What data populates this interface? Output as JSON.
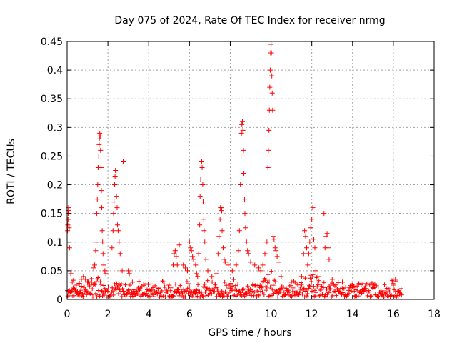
{
  "chart_data": {
    "type": "scatter",
    "title": "Day 075 of 2024, Rate Of TEC Index for receiver nrmg",
    "xlabel": "GPS time / hours",
    "ylabel": "ROTI / TECUs",
    "xlim": [
      0,
      18
    ],
    "ylim": [
      0,
      0.45
    ],
    "xticks": [
      0,
      2,
      4,
      6,
      8,
      10,
      12,
      14,
      16,
      18
    ],
    "xtick_labels": [
      "0",
      "2",
      "4",
      "6",
      "8",
      "10",
      "12",
      "14",
      "16",
      "18"
    ],
    "yticks": [
      0,
      0.05,
      0.1,
      0.15,
      0.2,
      0.25,
      0.3,
      0.35,
      0.4,
      0.45
    ],
    "ytick_labels": [
      "0",
      "0.05",
      "0.1",
      "0.15",
      "0.2",
      "0.25",
      "0.3",
      "0.35",
      "0.4",
      "0.45"
    ],
    "grid": true,
    "marker": "+",
    "color": "#ff0000",
    "series": [
      {
        "name": "ROTI",
        "points": [
          [
            0.02,
            0.12
          ],
          [
            0.03,
            0.13
          ],
          [
            0.04,
            0.14
          ],
          [
            0.05,
            0.15
          ],
          [
            0.06,
            0.155
          ],
          [
            0.07,
            0.16
          ],
          [
            0.08,
            0.14
          ],
          [
            0.1,
            0.125
          ],
          [
            0.12,
            0.09
          ],
          [
            0.18,
            0.045
          ],
          [
            0.2,
            0.048
          ],
          [
            0.25,
            0.03
          ],
          [
            0.3,
            0.02
          ],
          [
            0.45,
            0.025
          ],
          [
            0.6,
            0.028
          ],
          [
            0.7,
            0.035
          ],
          [
            0.8,
            0.04
          ],
          [
            0.9,
            0.035
          ],
          [
            1.0,
            0.03
          ],
          [
            1.1,
            0.025
          ],
          [
            1.2,
            0.03
          ],
          [
            1.3,
            0.055
          ],
          [
            1.35,
            0.06
          ],
          [
            1.4,
            0.085
          ],
          [
            1.42,
            0.1
          ],
          [
            1.45,
            0.15
          ],
          [
            1.48,
            0.175
          ],
          [
            1.5,
            0.2
          ],
          [
            1.52,
            0.23
          ],
          [
            1.55,
            0.25
          ],
          [
            1.57,
            0.27
          ],
          [
            1.58,
            0.28
          ],
          [
            1.6,
            0.29
          ],
          [
            1.62,
            0.285
          ],
          [
            1.64,
            0.26
          ],
          [
            1.66,
            0.23
          ],
          [
            1.68,
            0.19
          ],
          [
            1.7,
            0.16
          ],
          [
            1.72,
            0.12
          ],
          [
            1.74,
            0.1
          ],
          [
            1.76,
            0.08
          ],
          [
            1.8,
            0.06
          ],
          [
            1.85,
            0.05
          ],
          [
            1.9,
            0.045
          ],
          [
            2.2,
            0.09
          ],
          [
            2.25,
            0.12
          ],
          [
            2.28,
            0.15
          ],
          [
            2.3,
            0.17
          ],
          [
            2.33,
            0.2
          ],
          [
            2.35,
            0.215
          ],
          [
            2.37,
            0.225
          ],
          [
            2.4,
            0.21
          ],
          [
            2.42,
            0.18
          ],
          [
            2.45,
            0.16
          ],
          [
            2.47,
            0.13
          ],
          [
            2.5,
            0.12
          ],
          [
            2.55,
            0.1
          ],
          [
            2.6,
            0.08
          ],
          [
            2.7,
            0.05
          ],
          [
            2.75,
            0.24
          ],
          [
            3.0,
            0.05
          ],
          [
            3.05,
            0.045
          ],
          [
            3.2,
            0.03
          ],
          [
            3.5,
            0.02
          ],
          [
            4.0,
            0.015
          ],
          [
            4.5,
            0.02
          ],
          [
            5.0,
            0.025
          ],
          [
            5.2,
            0.06
          ],
          [
            5.25,
            0.08
          ],
          [
            5.3,
            0.085
          ],
          [
            5.35,
            0.075
          ],
          [
            5.4,
            0.06
          ],
          [
            5.5,
            0.095
          ],
          [
            5.7,
            0.06
          ],
          [
            5.8,
            0.055
          ],
          [
            5.9,
            0.05
          ],
          [
            6.0,
            0.1
          ],
          [
            6.05,
            0.09
          ],
          [
            6.1,
            0.085
          ],
          [
            6.15,
            0.075
          ],
          [
            6.2,
            0.07
          ],
          [
            6.3,
            0.06
          ],
          [
            6.35,
            0.045
          ],
          [
            6.4,
            0.04
          ],
          [
            6.45,
            0.08
          ],
          [
            6.5,
            0.13
          ],
          [
            6.52,
            0.18
          ],
          [
            6.55,
            0.21
          ],
          [
            6.57,
            0.24
          ],
          [
            6.6,
            0.24
          ],
          [
            6.62,
            0.23
          ],
          [
            6.65,
            0.2
          ],
          [
            6.67,
            0.17
          ],
          [
            6.7,
            0.14
          ],
          [
            6.72,
            0.12
          ],
          [
            6.75,
            0.1
          ],
          [
            6.8,
            0.07
          ],
          [
            6.9,
            0.05
          ],
          [
            7.1,
            0.04
          ],
          [
            7.3,
            0.045
          ],
          [
            7.4,
            0.08
          ],
          [
            7.45,
            0.11
          ],
          [
            7.5,
            0.14
          ],
          [
            7.52,
            0.16
          ],
          [
            7.55,
            0.16
          ],
          [
            7.58,
            0.155
          ],
          [
            7.6,
            0.12
          ],
          [
            7.65,
            0.09
          ],
          [
            7.7,
            0.07
          ],
          [
            7.75,
            0.065
          ],
          [
            7.9,
            0.06
          ],
          [
            8.1,
            0.05
          ],
          [
            8.3,
            0.06
          ],
          [
            8.4,
            0.085
          ],
          [
            8.45,
            0.12
          ],
          [
            8.5,
            0.2
          ],
          [
            8.53,
            0.25
          ],
          [
            8.55,
            0.29
          ],
          [
            8.57,
            0.305
          ],
          [
            8.6,
            0.31
          ],
          [
            8.62,
            0.295
          ],
          [
            8.65,
            0.26
          ],
          [
            8.67,
            0.22
          ],
          [
            8.7,
            0.175
          ],
          [
            8.72,
            0.15
          ],
          [
            8.75,
            0.125
          ],
          [
            8.8,
            0.1
          ],
          [
            8.85,
            0.085
          ],
          [
            8.9,
            0.08
          ],
          [
            9.0,
            0.065
          ],
          [
            9.2,
            0.06
          ],
          [
            9.4,
            0.055
          ],
          [
            9.5,
            0.05
          ],
          [
            9.6,
            0.06
          ],
          [
            9.7,
            0.08
          ],
          [
            9.8,
            0.1
          ],
          [
            9.85,
            0.23
          ],
          [
            9.87,
            0.26
          ],
          [
            9.9,
            0.295
          ],
          [
            9.92,
            0.33
          ],
          [
            9.94,
            0.37
          ],
          [
            9.96,
            0.4
          ],
          [
            9.98,
            0.43
          ],
          [
            10.0,
            0.445
          ],
          [
            10.02,
            0.43
          ],
          [
            10.04,
            0.39
          ],
          [
            10.06,
            0.36
          ],
          [
            10.08,
            0.33
          ],
          [
            10.1,
            0.11
          ],
          [
            10.15,
            0.105
          ],
          [
            10.2,
            0.09
          ],
          [
            10.25,
            0.085
          ],
          [
            10.3,
            0.075
          ],
          [
            10.35,
            0.065
          ],
          [
            10.5,
            0.04
          ],
          [
            11.0,
            0.03
          ],
          [
            11.5,
            0.04
          ],
          [
            11.6,
            0.08
          ],
          [
            11.65,
            0.12
          ],
          [
            11.7,
            0.11
          ],
          [
            11.75,
            0.09
          ],
          [
            11.8,
            0.06
          ],
          [
            11.85,
            0.08
          ],
          [
            11.9,
            0.1
          ],
          [
            11.95,
            0.125
          ],
          [
            12.0,
            0.14
          ],
          [
            12.05,
            0.16
          ],
          [
            12.1,
            0.105
          ],
          [
            12.15,
            0.09
          ],
          [
            12.2,
            0.05
          ],
          [
            12.3,
            0.04
          ],
          [
            12.6,
            0.15
          ],
          [
            12.65,
            0.09
          ],
          [
            12.7,
            0.11
          ],
          [
            12.75,
            0.115
          ],
          [
            12.8,
            0.09
          ],
          [
            12.85,
            0.07
          ],
          [
            13.0,
            0.035
          ],
          [
            13.5,
            0.03
          ],
          [
            14.0,
            0.025
          ],
          [
            14.5,
            0.015
          ],
          [
            15.0,
            0.02
          ],
          [
            15.5,
            0.015
          ],
          [
            16.0,
            0.025
          ],
          [
            16.1,
            0.035
          ],
          [
            16.3,
            0.01
          ],
          [
            16.4,
            0.008
          ]
        ]
      }
    ]
  }
}
